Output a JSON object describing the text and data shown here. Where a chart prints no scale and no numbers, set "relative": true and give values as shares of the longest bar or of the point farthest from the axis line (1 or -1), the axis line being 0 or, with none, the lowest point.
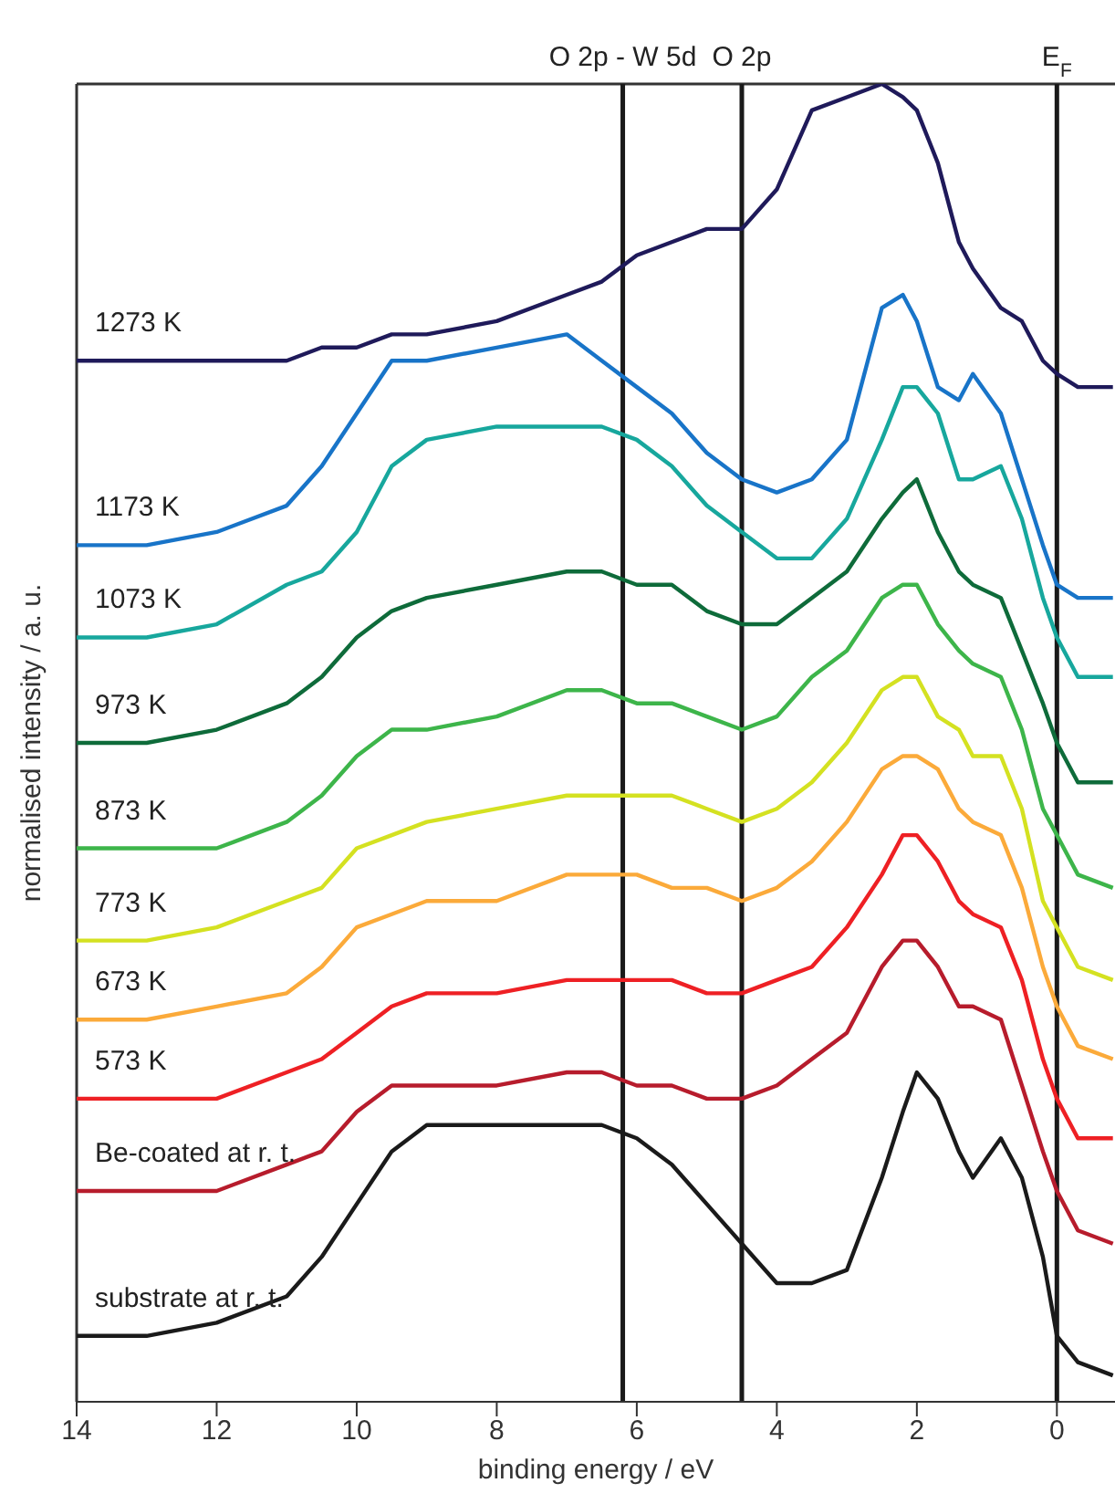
{
  "chart_data": {
    "type": "line",
    "relative": true,
    "xlabel": "binding energy / eV",
    "ylabel": "normalised intensity / a. u.",
    "xlim": [
      14,
      -0.83
    ],
    "xticks": [
      14,
      12,
      10,
      8,
      6,
      4,
      2,
      0
    ],
    "x": [
      14,
      13,
      12,
      11,
      10.5,
      10,
      9.5,
      9,
      8,
      7,
      6.5,
      6,
      5.5,
      5,
      4.5,
      4,
      3.5,
      3,
      2.5,
      2.2,
      2,
      1.7,
      1.4,
      1.2,
      0.8,
      0.5,
      0.2,
      0,
      -0.3,
      -0.8
    ],
    "series": [
      {
        "name": "1273 K",
        "color": "#1f1a5a",
        "values": [
          0.79,
          0.79,
          0.79,
          0.79,
          0.8,
          0.8,
          0.81,
          0.81,
          0.82,
          0.84,
          0.85,
          0.87,
          0.88,
          0.89,
          0.89,
          0.92,
          0.98,
          0.99,
          1.0,
          0.99,
          0.98,
          0.94,
          0.88,
          0.86,
          0.83,
          0.82,
          0.79,
          0.78,
          0.77,
          0.77
        ]
      },
      {
        "name": "1173 K",
        "color": "#1874c8",
        "values": [
          0.65,
          0.65,
          0.66,
          0.68,
          0.71,
          0.75,
          0.79,
          0.79,
          0.8,
          0.81,
          0.79,
          0.77,
          0.75,
          0.72,
          0.7,
          0.69,
          0.7,
          0.73,
          0.83,
          0.84,
          0.82,
          0.77,
          0.76,
          0.78,
          0.75,
          0.7,
          0.65,
          0.62,
          0.61,
          0.61
        ]
      },
      {
        "name": "1073 K",
        "color": "#17a79d",
        "values": [
          0.58,
          0.58,
          0.59,
          0.62,
          0.63,
          0.66,
          0.71,
          0.73,
          0.74,
          0.74,
          0.74,
          0.73,
          0.71,
          0.68,
          0.66,
          0.64,
          0.64,
          0.67,
          0.73,
          0.77,
          0.77,
          0.75,
          0.7,
          0.7,
          0.71,
          0.67,
          0.61,
          0.58,
          0.55,
          0.55
        ]
      },
      {
        "name": "973 K",
        "color": "#0e6b3a",
        "values": [
          0.5,
          0.5,
          0.51,
          0.53,
          0.55,
          0.58,
          0.6,
          0.61,
          0.62,
          0.63,
          0.63,
          0.62,
          0.62,
          0.6,
          0.59,
          0.59,
          0.61,
          0.63,
          0.67,
          0.69,
          0.7,
          0.66,
          0.63,
          0.62,
          0.61,
          0.57,
          0.53,
          0.5,
          0.47,
          0.47
        ]
      },
      {
        "name": "873 K",
        "color": "#3db54a",
        "values": [
          0.42,
          0.42,
          0.42,
          0.44,
          0.46,
          0.49,
          0.51,
          0.51,
          0.52,
          0.54,
          0.54,
          0.53,
          0.53,
          0.52,
          0.51,
          0.52,
          0.55,
          0.57,
          0.61,
          0.62,
          0.62,
          0.59,
          0.57,
          0.56,
          0.55,
          0.51,
          0.45,
          0.43,
          0.4,
          0.39
        ]
      },
      {
        "name": "773 K",
        "color": "#d4e121",
        "values": [
          0.35,
          0.35,
          0.36,
          0.38,
          0.39,
          0.42,
          0.43,
          0.44,
          0.45,
          0.46,
          0.46,
          0.46,
          0.46,
          0.45,
          0.44,
          0.45,
          0.47,
          0.5,
          0.54,
          0.55,
          0.55,
          0.52,
          0.51,
          0.49,
          0.49,
          0.45,
          0.38,
          0.36,
          0.33,
          0.32
        ]
      },
      {
        "name": "673 K",
        "color": "#fbaa3a",
        "values": [
          0.29,
          0.29,
          0.3,
          0.31,
          0.33,
          0.36,
          0.37,
          0.38,
          0.38,
          0.4,
          0.4,
          0.4,
          0.39,
          0.39,
          0.38,
          0.39,
          0.41,
          0.44,
          0.48,
          0.49,
          0.49,
          0.48,
          0.45,
          0.44,
          0.43,
          0.39,
          0.33,
          0.3,
          0.27,
          0.26
        ]
      },
      {
        "name": "573 K",
        "color": "#ee2024",
        "values": [
          0.23,
          0.23,
          0.23,
          0.25,
          0.26,
          0.28,
          0.3,
          0.31,
          0.31,
          0.32,
          0.32,
          0.32,
          0.32,
          0.31,
          0.31,
          0.32,
          0.33,
          0.36,
          0.4,
          0.43,
          0.43,
          0.41,
          0.38,
          0.37,
          0.36,
          0.32,
          0.26,
          0.23,
          0.2,
          0.2
        ]
      },
      {
        "name": "Be-coated at r. t.",
        "color": "#b71c2c",
        "values": [
          0.16,
          0.16,
          0.16,
          0.18,
          0.19,
          0.22,
          0.24,
          0.24,
          0.24,
          0.25,
          0.25,
          0.24,
          0.24,
          0.23,
          0.23,
          0.24,
          0.26,
          0.28,
          0.33,
          0.35,
          0.35,
          0.33,
          0.3,
          0.3,
          0.29,
          0.24,
          0.19,
          0.16,
          0.13,
          0.12
        ]
      },
      {
        "name": "substrate at r. t.",
        "color": "#1a1a1a",
        "values": [
          0.05,
          0.05,
          0.06,
          0.08,
          0.11,
          0.15,
          0.19,
          0.21,
          0.21,
          0.21,
          0.21,
          0.2,
          0.18,
          0.15,
          0.12,
          0.09,
          0.09,
          0.1,
          0.17,
          0.22,
          0.25,
          0.23,
          0.19,
          0.17,
          0.2,
          0.17,
          0.11,
          0.05,
          0.03,
          0.02
        ]
      }
    ],
    "ref_lines": [
      {
        "axis": "x",
        "value": 6.2,
        "label": "O 2p - W 5d",
        "color": "#1a1a1a"
      },
      {
        "axis": "x",
        "value": 4.5,
        "label": "O 2p",
        "color": "#1a1a1a"
      },
      {
        "axis": "x",
        "value": 0,
        "label": "E$_{F}$",
        "color": "#1a1a1a"
      }
    ],
    "marker": "none",
    "line_style": "solid"
  }
}
